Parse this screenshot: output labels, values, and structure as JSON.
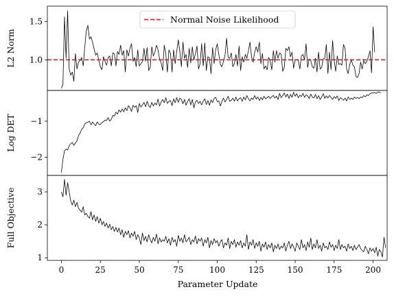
{
  "chart_data": [
    {
      "type": "line",
      "ylabel": "L2 Norm",
      "xlim": [
        -9,
        209
      ],
      "ylim": [
        0.6,
        1.7
      ],
      "yticks": [
        1.0,
        1.5
      ],
      "ytick_labels": [
        "1.0",
        "1.5"
      ],
      "reference_line": {
        "y": 1.0,
        "color": "#e8120c",
        "style": "dashed",
        "legend_label": "Normal Noise Likelihood"
      },
      "legend": {
        "placement": "top-center",
        "entries": [
          "Normal Noise Likelihood"
        ]
      },
      "series": [
        {
          "color": "#000000",
          "values": [
            0.63,
            0.68,
            1.56,
            1.02,
            1.64,
            0.88,
            0.8,
            0.84,
            0.72,
            1.08,
            0.88,
            0.97,
            0.99,
            1.03,
            0.92,
            1.17,
            1.38,
            1.45,
            1.27,
            1.3,
            1.23,
            1.14,
            1.06,
            1.09,
            0.99,
            0.91,
            0.87,
            1.04,
            0.98,
            0.93,
            1.03,
            1.05,
            0.92,
            1.09,
            1.08,
            0.92,
            1.11,
            1.07,
            1.19,
            1.06,
            1.12,
            0.84,
            1.13,
            1.05,
            1.15,
            1.21,
            0.98,
            1.03,
            0.91,
            1.13,
            0.92,
            0.95,
            0.98,
            1.15,
            0.98,
            1.16,
            0.86,
            0.9,
            1.17,
            1.05,
            1.1,
            1.19,
            1.13,
            1.01,
            0.96,
            0.86,
            1.19,
            1.08,
            0.84,
            1.13,
            1.08,
            0.84,
            1.13,
            0.95,
            1.11,
            1.26,
            1.11,
            0.91,
            1.23,
            1.02,
            1.07,
            0.9,
            1.15,
            0.96,
            1.17,
            1.0,
            1.08,
            1.18,
            0.88,
            0.95,
            1.21,
            0.92,
            1.22,
            0.86,
            1.04,
            1.02,
            0.82,
            1.16,
            0.95,
            1.13,
            1.21,
            1.07,
            0.94,
            0.91,
            0.98,
            1.06,
            1.28,
            1.03,
            1.02,
            1.09,
            0.91,
            0.95,
            1.07,
            0.92,
            1.18,
            0.86,
            1.04,
            0.97,
            1.07,
            1.02,
            1.12,
            1.23,
            1.04,
            0.97,
            1.1,
            1.17,
            1.1,
            1.23,
            0.95,
            1.08,
            0.88,
            0.92,
            0.87,
            1.03,
            0.98,
            0.87,
            1.12,
            0.97,
            1.12,
            1.02,
            1.09,
            1.07,
            0.85,
            0.9,
            1.15,
            1.12,
            1.17,
            1.04,
            1.1,
            0.89,
            1.0,
            1.0,
            0.99,
            0.88,
            1.05,
            1.07,
            1.0,
            1.21,
            0.9,
            1.01,
            0.99,
            0.91,
            0.89,
            1.02,
            0.84,
            1.1,
            0.88,
            0.9,
            1.01,
            1.02,
            1.2,
            0.82,
            1.1,
            0.87,
            1.25,
            1.0,
            0.85,
            1.05,
            0.94,
            0.95,
            0.93,
            1.2,
            1.15,
            0.88,
            0.82,
            0.94,
            1.0,
            0.93,
            0.91,
            0.78,
            0.77,
            0.82,
            0.97,
            0.88,
            0.99,
            0.95,
            0.98,
            1.04,
            1.12,
            0.83,
            1.43,
            1.1
          ]
        }
      ]
    },
    {
      "type": "line",
      "ylabel": "Log DET",
      "xlim": [
        -9,
        209
      ],
      "ylim": [
        -2.5,
        -0.15
      ],
      "yticks": [
        -2,
        -1
      ],
      "ytick_labels": [
        "−2",
        "−1"
      ],
      "series": [
        {
          "color": "#000000",
          "values": [
            -2.42,
            -2.05,
            -1.82,
            -1.77,
            -1.8,
            -1.68,
            -1.62,
            -1.59,
            -1.67,
            -1.6,
            -1.55,
            -1.4,
            -1.33,
            -1.22,
            -1.18,
            -1.08,
            -1.04,
            -1.03,
            -1.0,
            -1.1,
            -1.02,
            -1.08,
            -1.12,
            -1.02,
            -1.08,
            -1.09,
            -1.04,
            -1.01,
            -0.97,
            -0.98,
            -0.9,
            -1.0,
            -0.95,
            -0.84,
            -0.86,
            -0.75,
            -0.8,
            -0.69,
            -0.75,
            -0.66,
            -0.74,
            -0.63,
            -0.71,
            -0.57,
            -0.63,
            -0.73,
            -0.56,
            -0.62,
            -0.57,
            -0.76,
            -0.51,
            -0.61,
            -0.55,
            -0.48,
            -0.6,
            -0.45,
            -0.57,
            -0.62,
            -0.48,
            -0.58,
            -0.5,
            -0.55,
            -0.39,
            -0.58,
            -0.47,
            -0.4,
            -0.49,
            -0.35,
            -0.51,
            -0.45,
            -0.43,
            -0.57,
            -0.38,
            -0.49,
            -0.35,
            -0.48,
            -0.36,
            -0.4,
            -0.52,
            -0.4,
            -0.56,
            -0.45,
            -0.38,
            -0.55,
            -0.4,
            -0.63,
            -0.47,
            -0.42,
            -0.51,
            -0.45,
            -0.55,
            -0.45,
            -0.38,
            -0.54,
            -0.43,
            -0.56,
            -0.41,
            -0.49,
            -0.37,
            -0.34,
            -0.46,
            -0.44,
            -0.58,
            -0.45,
            -0.36,
            -0.47,
            -0.4,
            -0.31,
            -0.45,
            -0.42,
            -0.36,
            -0.45,
            -0.33,
            -0.44,
            -0.38,
            -0.35,
            -0.45,
            -0.33,
            -0.41,
            -0.29,
            -0.38,
            -0.44,
            -0.36,
            -0.4,
            -0.29,
            -0.39,
            -0.33,
            -0.43,
            -0.34,
            -0.41,
            -0.31,
            -0.38,
            -0.35,
            -0.31,
            -0.37,
            -0.32,
            -0.29,
            -0.36,
            -0.31,
            -0.4,
            -0.23,
            -0.35,
            -0.29,
            -0.22,
            -0.33,
            -0.25,
            -0.37,
            -0.26,
            -0.34,
            -0.2,
            -0.31,
            -0.24,
            -0.35,
            -0.28,
            -0.32,
            -0.23,
            -0.34,
            -0.27,
            -0.3,
            -0.37,
            -0.25,
            -0.33,
            -0.36,
            -0.26,
            -0.38,
            -0.29,
            -0.4,
            -0.33,
            -0.24,
            -0.37,
            -0.3,
            -0.36,
            -0.29,
            -0.34,
            -0.4,
            -0.32,
            -0.37,
            -0.3,
            -0.43,
            -0.35,
            -0.38,
            -0.42,
            -0.36,
            -0.44,
            -0.33,
            -0.4,
            -0.36,
            -0.4,
            -0.33,
            -0.37,
            -0.34,
            -0.38,
            -0.33,
            -0.35,
            -0.29,
            -0.33,
            -0.27,
            -0.29,
            -0.24,
            -0.22,
            -0.22,
            -0.21,
            -0.23,
            -0.2,
            -0.2,
            -0.22
          ]
        }
      ]
    },
    {
      "type": "line",
      "ylabel": "Full Objective",
      "xlabel": "Parameter Update",
      "xlim": [
        -9,
        209
      ],
      "ylim": [
        0.92,
        3.5
      ],
      "xticks": [
        0,
        25,
        50,
        75,
        100,
        125,
        150,
        175,
        200
      ],
      "yticks": [
        1,
        2,
        3
      ],
      "ytick_labels": [
        "1",
        "2",
        "3"
      ],
      "series": [
        {
          "color": "#000000",
          "values": [
            3.0,
            2.85,
            3.38,
            2.9,
            3.28,
            3.0,
            2.72,
            2.6,
            2.75,
            2.55,
            2.68,
            2.5,
            2.45,
            2.38,
            2.55,
            2.3,
            2.35,
            2.25,
            2.2,
            2.4,
            2.15,
            2.3,
            2.1,
            2.25,
            2.05,
            2.2,
            2.0,
            2.1,
            1.95,
            2.05,
            1.9,
            2.02,
            1.85,
            1.95,
            1.8,
            1.92,
            1.78,
            1.9,
            1.7,
            1.85,
            1.62,
            1.8,
            1.7,
            1.82,
            1.6,
            1.75,
            1.65,
            1.8,
            1.55,
            1.7,
            1.6,
            1.4,
            1.75,
            1.52,
            1.65,
            1.48,
            1.7,
            1.55,
            1.45,
            1.62,
            1.5,
            1.72,
            1.42,
            1.6,
            1.48,
            1.55,
            1.5,
            1.65,
            1.45,
            1.58,
            1.38,
            1.62,
            1.48,
            1.55,
            1.35,
            1.68,
            1.5,
            1.6,
            1.45,
            1.7,
            1.48,
            1.55,
            1.62,
            1.4,
            1.55,
            1.48,
            1.66,
            1.42,
            1.58,
            1.5,
            1.6,
            1.35,
            1.55,
            1.45,
            1.62,
            1.3,
            1.52,
            1.4,
            1.58,
            1.45,
            1.52,
            1.35,
            1.48,
            1.55,
            1.3,
            1.45,
            1.38,
            1.6,
            1.28,
            1.5,
            1.4,
            1.55,
            1.32,
            1.48,
            1.38,
            1.52,
            1.3,
            1.45,
            1.35,
            1.7,
            1.25,
            1.48,
            1.38,
            1.55,
            1.28,
            1.45,
            1.35,
            1.5,
            1.2,
            1.42,
            1.32,
            1.48,
            1.25,
            1.4,
            1.3,
            1.45,
            1.18,
            1.38,
            1.28,
            1.42,
            1.25,
            1.35,
            1.3,
            1.45,
            1.2,
            1.38,
            1.5,
            1.28,
            1.42,
            1.32,
            1.2,
            1.45,
            1.35,
            1.25,
            1.55,
            1.3,
            1.4,
            1.22,
            1.48,
            1.32,
            1.6,
            1.25,
            1.42,
            1.3,
            1.55,
            1.28,
            1.38,
            1.2,
            1.45,
            1.3,
            1.35,
            1.25,
            1.48,
            1.32,
            1.4,
            1.22,
            1.38,
            1.28,
            1.55,
            1.25,
            1.4,
            1.3,
            1.35,
            1.2,
            1.42,
            1.28,
            1.35,
            1.22,
            1.38,
            1.25,
            1.32,
            1.4,
            1.28,
            1.22,
            1.18,
            1.35,
            1.25,
            1.12,
            1.3,
            1.2,
            1.28,
            1.15,
            1.32,
            1.05,
            1.25,
            1.18,
            1.02,
            1.62,
            1.3
          ]
        }
      ]
    }
  ]
}
